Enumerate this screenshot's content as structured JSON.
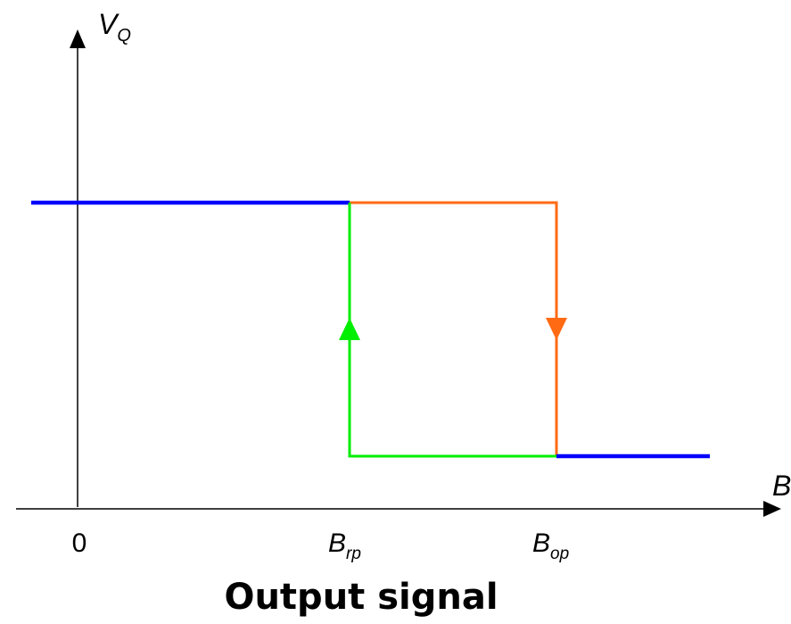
{
  "axes": {
    "y_label": {
      "main": "V",
      "sub": "Q"
    },
    "x_label": {
      "main": "B",
      "sub": ""
    },
    "origin_label": "0"
  },
  "thresholds": {
    "release": {
      "main": "B",
      "sub": "rp"
    },
    "operate": {
      "main": "B",
      "sub": "op"
    }
  },
  "caption": "Output signal",
  "colors": {
    "axis": "#000000",
    "steady_state": "#0000ff",
    "rising_path": "#ff6a13",
    "falling_path": "#00ee00"
  }
}
